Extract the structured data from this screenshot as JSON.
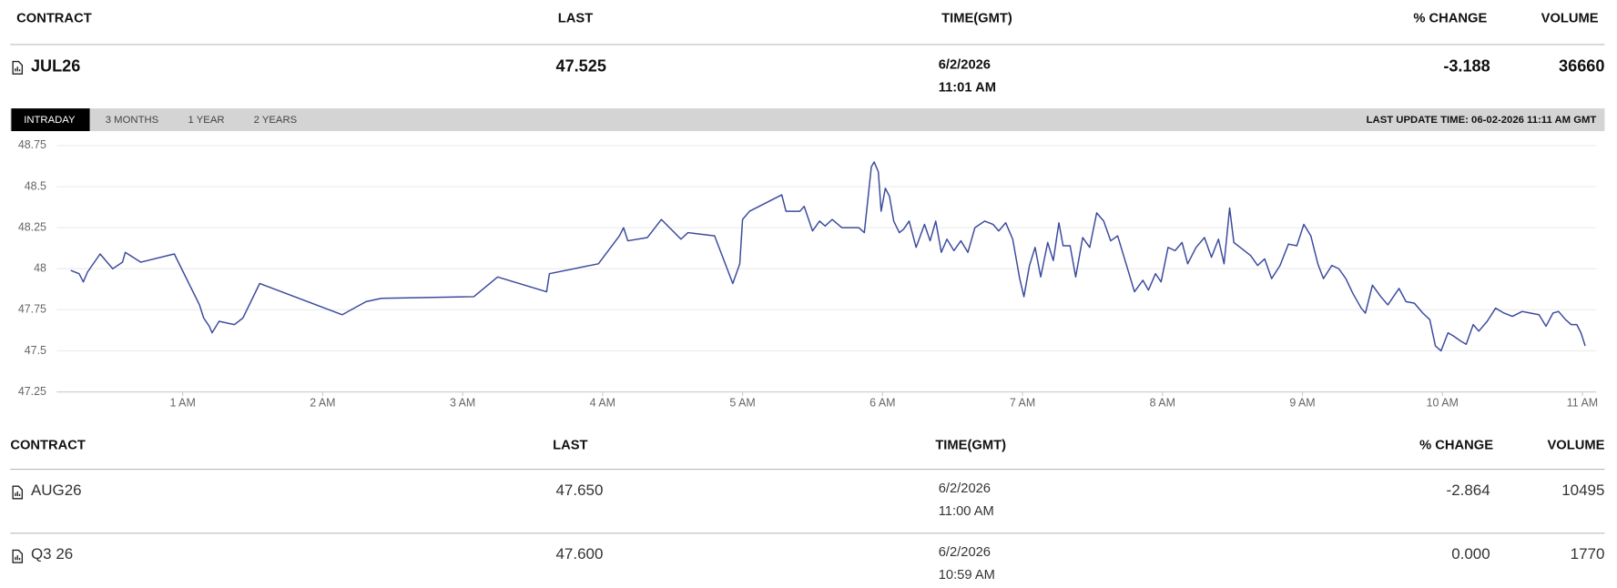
{
  "header": {
    "columns": [
      "CONTRACT",
      "LAST",
      "TIME(GMT)",
      "% CHANGE",
      "VOLUME"
    ]
  },
  "main_row": [
    "JUL26",
    "47.525",
    "6/2/2026",
    "11:01 AM",
    "-3.188",
    "36660"
  ],
  "tabs": [
    "INTRADAY",
    "3 MONTHS",
    "1 YEAR",
    "2 YEARS"
  ],
  "active_tab": 0,
  "last_update": "LAST UPDATE TIME: 06-02-2026 11:11 AM GMT",
  "chart_data": {
    "type": "line",
    "x": [
      0.2,
      0.26,
      0.29,
      0.32,
      0.41,
      0.5,
      0.57,
      0.59,
      0.7,
      0.94,
      1.12,
      1.15,
      1.19,
      1.21,
      1.26,
      1.37,
      1.43,
      1.55,
      2.14,
      2.31,
      2.42,
      3.08,
      3.25,
      3.6,
      3.62,
      3.97,
      4.12,
      4.15,
      4.18,
      4.32,
      4.42,
      4.56,
      4.61,
      4.8,
      4.89,
      4.93,
      4.98,
      5.0,
      5.05,
      5.28,
      5.31,
      5.41,
      5.44,
      5.5,
      5.55,
      5.59,
      5.64,
      5.71,
      5.83,
      5.87,
      5.92,
      5.94,
      5.97,
      5.99,
      6.02,
      6.05,
      6.08,
      6.12,
      6.15,
      6.19,
      6.24,
      6.3,
      6.34,
      6.38,
      6.42,
      6.46,
      6.51,
      6.56,
      6.61,
      6.66,
      6.73,
      6.79,
      6.83,
      6.88,
      6.93,
      6.98,
      7.01,
      7.05,
      7.09,
      7.13,
      7.18,
      7.22,
      7.26,
      7.29,
      7.34,
      7.38,
      7.43,
      7.48,
      7.53,
      7.58,
      7.63,
      7.68,
      7.74,
      7.8,
      7.86,
      7.9,
      7.95,
      7.99,
      8.04,
      8.09,
      8.14,
      8.18,
      8.24,
      8.3,
      8.35,
      8.4,
      8.44,
      8.48,
      8.51,
      8.57,
      8.63,
      8.68,
      8.73,
      8.78,
      8.84,
      8.9,
      8.96,
      9.01,
      9.06,
      9.11,
      9.15,
      9.21,
      9.26,
      9.31,
      9.36,
      9.42,
      9.45,
      9.5,
      9.56,
      9.61,
      9.69,
      9.74,
      9.8,
      9.86,
      9.91,
      9.95,
      9.99,
      10.04,
      10.08,
      10.13,
      10.17,
      10.22,
      10.26,
      10.32,
      10.38,
      10.44,
      10.5,
      10.57,
      10.63,
      10.69,
      10.74,
      10.79,
      10.83,
      10.88,
      10.92,
      10.96,
      10.99,
      11.02
    ],
    "series": [
      {
        "color": "#3b4a9c",
        "values": [
          47.99,
          47.97,
          47.92,
          47.98,
          48.09,
          48.0,
          48.04,
          48.1,
          48.04,
          48.09,
          47.78,
          47.7,
          47.65,
          47.61,
          47.68,
          47.66,
          47.7,
          47.91,
          47.72,
          47.8,
          47.82,
          47.83,
          47.95,
          47.86,
          47.97,
          48.03,
          48.2,
          48.25,
          48.17,
          48.19,
          48.3,
          48.18,
          48.22,
          48.2,
          48.0,
          47.91,
          48.03,
          48.3,
          48.35,
          48.45,
          48.35,
          48.35,
          48.38,
          48.23,
          48.29,
          48.26,
          48.3,
          48.25,
          48.25,
          48.22,
          48.62,
          48.65,
          48.59,
          48.35,
          48.49,
          48.44,
          48.29,
          48.22,
          48.24,
          48.29,
          48.13,
          48.27,
          48.17,
          48.29,
          48.1,
          48.18,
          48.11,
          48.17,
          48.1,
          48.25,
          48.29,
          48.27,
          48.23,
          48.28,
          48.18,
          47.94,
          47.83,
          48.02,
          48.13,
          47.95,
          48.16,
          48.05,
          48.28,
          48.14,
          48.14,
          47.95,
          48.19,
          48.13,
          48.34,
          48.29,
          48.17,
          48.2,
          48.03,
          47.86,
          47.93,
          47.87,
          47.97,
          47.92,
          48.13,
          48.11,
          48.16,
          48.03,
          48.13,
          48.19,
          48.07,
          48.18,
          48.03,
          48.37,
          48.16,
          48.12,
          48.08,
          48.02,
          48.06,
          47.94,
          48.02,
          48.15,
          48.14,
          48.27,
          48.2,
          48.03,
          47.94,
          48.02,
          48.0,
          47.94,
          47.85,
          47.76,
          47.73,
          47.9,
          47.83,
          47.78,
          47.88,
          47.8,
          47.79,
          47.73,
          47.69,
          47.53,
          47.5,
          47.61,
          47.59,
          47.56,
          47.54,
          47.66,
          47.62,
          47.68,
          47.76,
          47.73,
          47.71,
          47.74,
          47.73,
          47.72,
          47.65,
          47.73,
          47.74,
          47.69,
          47.66,
          47.66,
          47.61,
          47.53
        ]
      }
    ],
    "xlim": [
      0.1,
      11.1
    ],
    "xticks": [
      {
        "value": 1,
        "label": "1 AM"
      },
      {
        "value": 2,
        "label": "2 AM"
      },
      {
        "value": 3,
        "label": "3 AM"
      },
      {
        "value": 4,
        "label": "4 AM"
      },
      {
        "value": 5,
        "label": "5 AM"
      },
      {
        "value": 6,
        "label": "6 AM"
      },
      {
        "value": 7,
        "label": "7 AM"
      },
      {
        "value": 8,
        "label": "8 AM"
      },
      {
        "value": 9,
        "label": "9 AM"
      },
      {
        "value": 10,
        "label": "10 AM"
      },
      {
        "value": 11,
        "label": "11 AM"
      }
    ],
    "ylim": [
      47.25,
      48.75
    ],
    "yticks": [
      48.75,
      48.5,
      48.25,
      48,
      47.75,
      47.5,
      47.25
    ],
    "grid": true
  },
  "table": {
    "columns": [
      "CONTRACT",
      "LAST",
      "TIME(GMT)",
      "% CHANGE",
      "VOLUME"
    ],
    "rows": [
      [
        "AUG26",
        "47.650",
        "6/2/2026",
        "11:00 AM",
        "-2.864",
        "10495"
      ],
      [
        "Q3 26",
        "47.600",
        "6/2/2026",
        "10:59 AM",
        "0.000",
        "1770"
      ]
    ]
  }
}
